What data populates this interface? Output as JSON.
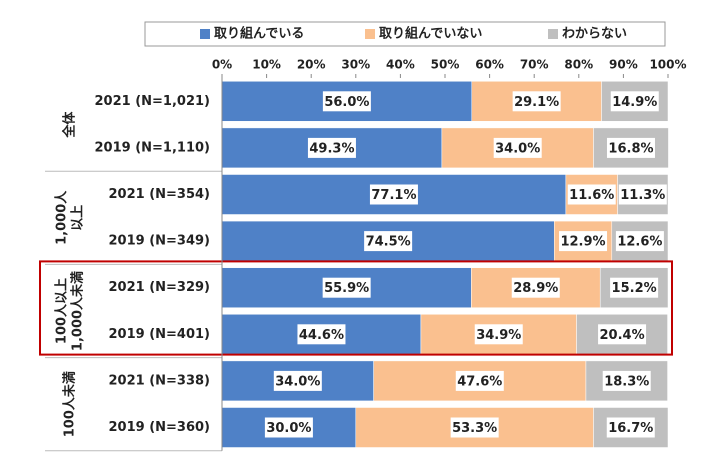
{
  "chart_data": {
    "type": "stacked-bar-horizontal",
    "groups": [
      {
        "name": [
          "全体"
        ],
        "categories": [
          "2021 (N=1,021)",
          "2019 (N=1,110)"
        ]
      },
      {
        "name": [
          "1,000人",
          "以上"
        ],
        "categories": [
          "2021 (N=354)",
          "2019 (N=349)"
        ]
      },
      {
        "name": [
          "100人以上",
          "1,000人未満"
        ],
        "categories": [
          "2021 (N=329)",
          "2019 (N=401)"
        ],
        "highlight": true
      },
      {
        "name": [
          "100人未満"
        ],
        "categories": [
          "2021 (N=338)",
          "2019 (N=360)"
        ]
      }
    ],
    "series": [
      {
        "name": "取り組んでいる",
        "color": "#4f81c7",
        "values": [
          56.0,
          49.3,
          77.1,
          74.5,
          55.9,
          44.6,
          34.0,
          30.0
        ],
        "value_labels": [
          "56.0%",
          "49.3%",
          "77.1%",
          "74.5%",
          "55.9%",
          "44.6%",
          "34.0%",
          "30.0%"
        ]
      },
      {
        "name": "取り組んでいない",
        "color": "#fac08f",
        "values": [
          29.1,
          34.0,
          11.6,
          12.9,
          28.9,
          34.9,
          47.6,
          53.3
        ],
        "value_labels": [
          "29.1%",
          "34.0%",
          "11.6%",
          "12.9%",
          "28.9%",
          "34.9%",
          "47.6%",
          "53.3%"
        ]
      },
      {
        "name": "わからない",
        "color": "#bfbfbf",
        "values": [
          14.9,
          16.8,
          11.3,
          12.6,
          15.2,
          20.4,
          18.3,
          16.7
        ],
        "value_labels": [
          "14.9%",
          "16.8%",
          "11.3%",
          "12.6%",
          "15.2%",
          "20.4%",
          "18.3%",
          "16.7%"
        ]
      }
    ],
    "xlim": [
      0,
      100
    ],
    "xticks": [
      {
        "value": 0,
        "label": "0%"
      },
      {
        "value": 10,
        "label": "10%"
      },
      {
        "value": 20,
        "label": "20%"
      },
      {
        "value": 30,
        "label": "30%"
      },
      {
        "value": 40,
        "label": "40%"
      },
      {
        "value": 50,
        "label": "50%"
      },
      {
        "value": 60,
        "label": "60%"
      },
      {
        "value": 70,
        "label": "70%"
      },
      {
        "value": 80,
        "label": "80%"
      },
      {
        "value": 90,
        "label": "90%"
      },
      {
        "value": 100,
        "label": "100%"
      }
    ],
    "highlight_color": "#c00000"
  }
}
